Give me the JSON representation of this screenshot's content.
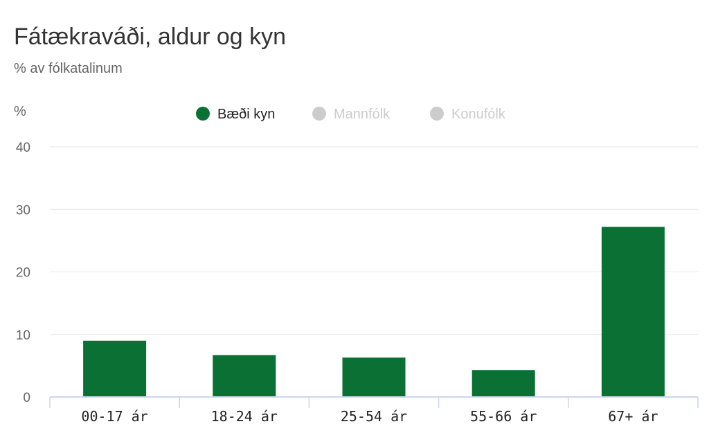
{
  "title": "Fátækraváði, aldur og kyn",
  "subtitle": "% av fólkatalinum",
  "colors": {
    "active": "#0b7033",
    "inactive": "#cccccc",
    "grid": "#e6e6e6",
    "axis": "#ccd6eb"
  },
  "chart_data": {
    "type": "bar",
    "title": "Fátækraváði, aldur og kyn",
    "subtitle": "% av fólkatalinum",
    "ylabel": "%",
    "xlabel": "",
    "categories": [
      "00-17 ár",
      "18-24 ár",
      "25-54 ár",
      "55-66 ár",
      "67+ ár"
    ],
    "ylim": [
      0,
      40
    ],
    "yticks": [
      0,
      10,
      20,
      30,
      40
    ],
    "grid": true,
    "legend_position": "top-center",
    "series": [
      {
        "name": "Bæði kyn",
        "values": [
          9.0,
          6.7,
          6.3,
          4.3,
          27.2
        ],
        "visible": true,
        "color": "#0b7033"
      },
      {
        "name": "Mannfólk",
        "visible": false,
        "color": "#cccccc"
      },
      {
        "name": "Konufólk",
        "visible": false,
        "color": "#cccccc"
      }
    ]
  }
}
